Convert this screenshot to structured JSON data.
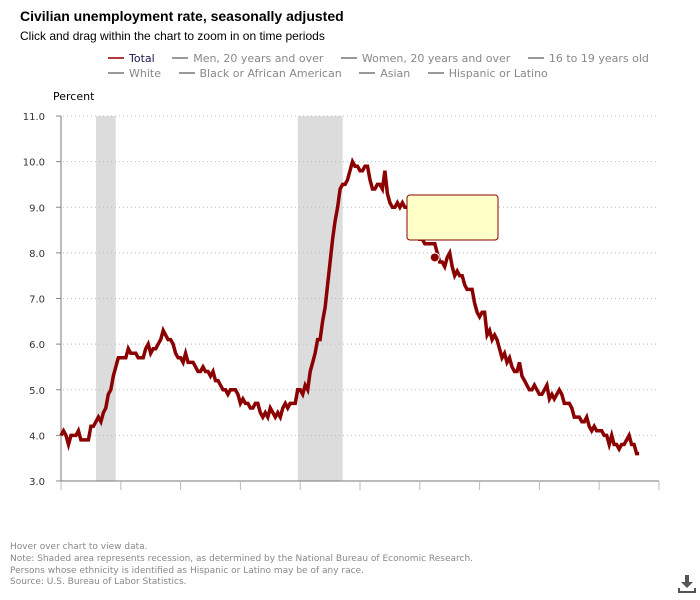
{
  "header": {
    "title": "Civilian unemployment rate, seasonally adjusted",
    "subtitle": "Click and drag within the chart to zoom in on time periods"
  },
  "legend": {
    "rows": [
      [
        {
          "label": "Total",
          "active": true
        },
        {
          "label": "Men, 20 years and over",
          "active": false
        },
        {
          "label": "Women, 20 years and over",
          "active": false
        },
        {
          "label": "16 to 19 years old",
          "active": false
        }
      ],
      [
        {
          "label": "White",
          "active": false
        },
        {
          "label": "Black or African American",
          "active": false
        },
        {
          "label": "Asian",
          "active": false
        },
        {
          "label": "Hispanic or Latino",
          "active": false
        }
      ]
    ]
  },
  "colors": {
    "series": "#8b0000",
    "recession": "#dcdcdc",
    "tooltip_bg": "#ffffc8",
    "tooltip_border": "#8b0000",
    "grid": "#bbbbbb"
  },
  "tooltip": {
    "visible": true,
    "text": "",
    "hover_date": 2012.5,
    "hover_value": 7.9
  },
  "footnotes": [
    "Hover over chart to view data.",
    "Note: Shaded area represents recession, as determined by the National Bureau of Economic Research.",
    "Persons whose ethnicity is identified as Hispanic or Latino may be of any race.",
    "Source: U.S. Bureau of Labor Statistics."
  ],
  "download_icon": "download-icon",
  "chart_data": {
    "type": "line",
    "title": "Civilian unemployment rate, seasonally adjusted",
    "xlabel": "",
    "ylabel": "Percent",
    "ylim": [
      3.0,
      11.0
    ],
    "xlim": [
      2000.0,
      2020.0
    ],
    "yticks": [
      "3.0",
      "4.0",
      "5.0",
      "6.0",
      "7.0",
      "8.0",
      "9.0",
      "10.0",
      "11.0"
    ],
    "xticks": [
      2000,
      2002,
      2004,
      2006,
      2008,
      2010,
      2012,
      2014,
      2016,
      2018,
      2020
    ],
    "xtick_labels_visible": false,
    "grid": "horizontal-dotted",
    "legend_position": "top",
    "recessions": [
      [
        2001.17,
        2001.83
      ],
      [
        2007.92,
        2009.42
      ]
    ],
    "series": [
      {
        "name": "Total",
        "x_start": 2000.0,
        "step": "monthly",
        "values": [
          4.0,
          4.1,
          4.0,
          3.8,
          4.0,
          4.0,
          4.0,
          4.1,
          3.9,
          3.9,
          3.9,
          3.9,
          4.2,
          4.2,
          4.3,
          4.4,
          4.3,
          4.5,
          4.6,
          4.9,
          5.0,
          5.3,
          5.5,
          5.7,
          5.7,
          5.7,
          5.7,
          5.9,
          5.8,
          5.8,
          5.8,
          5.7,
          5.7,
          5.7,
          5.9,
          6.0,
          5.8,
          5.9,
          5.9,
          6.0,
          6.1,
          6.3,
          6.2,
          6.1,
          6.1,
          6.0,
          5.8,
          5.7,
          5.7,
          5.6,
          5.8,
          5.6,
          5.6,
          5.6,
          5.5,
          5.4,
          5.4,
          5.5,
          5.4,
          5.4,
          5.3,
          5.4,
          5.2,
          5.2,
          5.1,
          5.0,
          5.0,
          4.9,
          5.0,
          5.0,
          5.0,
          4.9,
          4.7,
          4.8,
          4.7,
          4.7,
          4.6,
          4.6,
          4.7,
          4.7,
          4.5,
          4.4,
          4.5,
          4.4,
          4.6,
          4.5,
          4.4,
          4.5,
          4.4,
          4.6,
          4.7,
          4.6,
          4.7,
          4.7,
          4.7,
          5.0,
          5.0,
          4.9,
          5.1,
          5.0,
          5.4,
          5.6,
          5.8,
          6.1,
          6.1,
          6.5,
          6.8,
          7.3,
          7.8,
          8.3,
          8.7,
          9.0,
          9.4,
          9.5,
          9.5,
          9.6,
          9.8,
          10.0,
          9.9,
          9.9,
          9.8,
          9.8,
          9.9,
          9.9,
          9.6,
          9.4,
          9.4,
          9.5,
          9.5,
          9.4,
          9.8,
          9.3,
          9.1,
          9.0,
          9.0,
          9.1,
          9.0,
          9.1,
          9.0,
          9.0,
          9.0,
          8.8,
          8.6,
          8.5,
          8.3,
          8.3,
          8.2,
          8.2,
          8.2,
          8.2,
          8.2,
          8.0,
          7.8,
          7.8,
          7.7,
          7.9,
          8.0,
          7.7,
          7.5,
          7.6,
          7.5,
          7.5,
          7.3,
          7.2,
          7.2,
          7.2,
          6.9,
          6.7,
          6.6,
          6.7,
          6.7,
          6.2,
          6.3,
          6.1,
          6.2,
          6.1,
          5.9,
          5.7,
          5.8,
          5.6,
          5.7,
          5.5,
          5.4,
          5.4,
          5.6,
          5.3,
          5.2,
          5.1,
          5.0,
          5.0,
          5.1,
          5.0,
          4.9,
          4.9,
          5.0,
          5.1,
          4.8,
          4.9,
          4.8,
          4.9,
          5.0,
          4.9,
          4.7,
          4.7,
          4.7,
          4.6,
          4.4,
          4.4,
          4.4,
          4.3,
          4.3,
          4.4,
          4.2,
          4.1,
          4.2,
          4.1,
          4.1,
          4.1,
          4.0,
          4.0,
          3.8,
          4.0,
          3.8,
          3.8,
          3.7,
          3.8,
          3.8,
          3.9,
          4.0,
          3.8,
          3.8,
          3.6,
          3.6
        ]
      }
    ]
  }
}
